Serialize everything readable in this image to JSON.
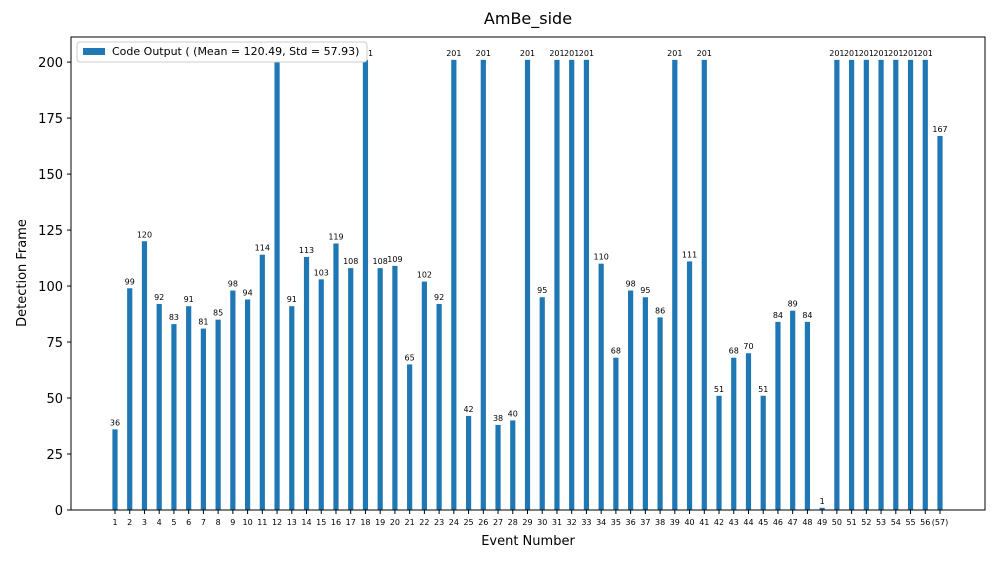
{
  "chart_data": {
    "type": "bar",
    "title": "AmBe_side",
    "x_label": "Event Number",
    "y_label": "Detection Frame",
    "categories": [
      "1",
      "2",
      "3",
      "4",
      "5",
      "6",
      "7",
      "8",
      "9",
      "10",
      "11",
      "12",
      "13",
      "14",
      "15",
      "16",
      "17",
      "18",
      "19",
      "20",
      "21",
      "22",
      "23",
      "24",
      "25",
      "26",
      "27",
      "28",
      "29",
      "30",
      "31",
      "32",
      "33",
      "34",
      "35",
      "36",
      "37",
      "38",
      "39",
      "40",
      "41",
      "42",
      "43",
      "44",
      "45",
      "46",
      "47",
      "48",
      "49",
      "50",
      "51",
      "52",
      "53",
      "54",
      "55",
      "56",
      "(57)"
    ],
    "series": [
      {
        "name": "Code Output ( (Mean = 120.49, Std = 57.93)",
        "color": "#1f77b4",
        "values": [
          36,
          99,
          120,
          92,
          83,
          91,
          81,
          85,
          98,
          94,
          114,
          201,
          91,
          113,
          103,
          119,
          108,
          201,
          108,
          109,
          65,
          102,
          92,
          201,
          42,
          201,
          38,
          40,
          201,
          95,
          201,
          201,
          201,
          110,
          68,
          98,
          95,
          86,
          201,
          111,
          201,
          51,
          68,
          70,
          51,
          84,
          89,
          84,
          1,
          201,
          201,
          201,
          201,
          201,
          201,
          201,
          167
        ]
      }
    ],
    "ylim": [
      0,
      211.2
    ],
    "yticks": [
      0,
      25,
      50,
      75,
      100,
      125,
      150,
      175,
      200
    ],
    "legend": "upper left"
  }
}
